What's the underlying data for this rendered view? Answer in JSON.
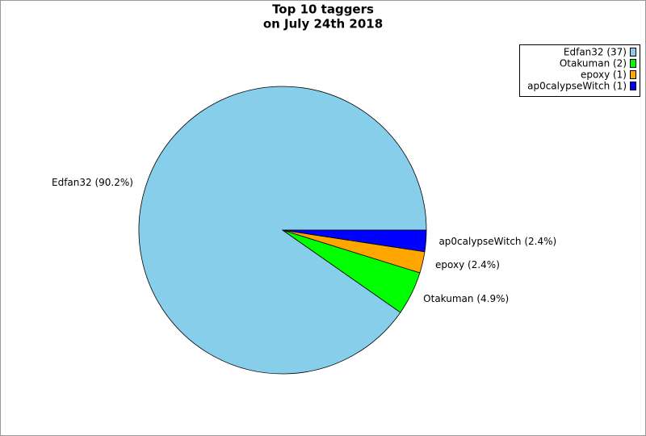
{
  "chart_data": {
    "type": "pie",
    "title": "Top 10 taggers",
    "subtitle": "on July 24th 2018",
    "categories": [
      "Edfan32 (37)",
      "Otakuman (2)",
      "epoxy (1)",
      "ap0calypseWitch (1)"
    ],
    "values": [
      90.2,
      4.9,
      2.4,
      2.4
    ],
    "value_labels": [
      "Edfan32 (90.2%)",
      "Otakuman (4.9%)",
      "epoxy (2.4%)",
      "ap0calypseWitch (2.4%)"
    ],
    "colors": [
      "#87ceeb",
      "#00ff00",
      "#ffa500",
      "#0000ff"
    ],
    "legend": "top-right"
  }
}
